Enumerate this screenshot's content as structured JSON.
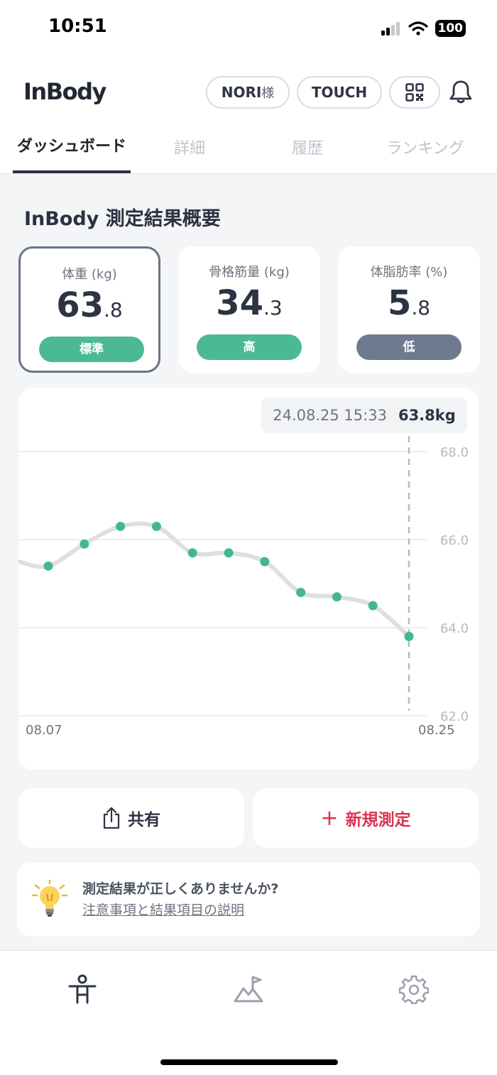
{
  "status": {
    "time": "10:51",
    "battery": "100"
  },
  "header": {
    "logo": "InBody",
    "user_name": "NORI",
    "user_suffix": "様",
    "touch_label": "TOUCH"
  },
  "tabs": [
    {
      "label": "ダッシュボード"
    },
    {
      "label": "詳細"
    },
    {
      "label": "履歴"
    },
    {
      "label": "ランキング"
    }
  ],
  "summary": {
    "title": "InBody 測定結果概要",
    "cards": [
      {
        "label": "体重 (kg)",
        "int": "63",
        "dec": ".8",
        "badge": "標準",
        "badge_color": "#4bba93"
      },
      {
        "label": "骨格筋量 (kg)",
        "int": "34",
        "dec": ".3",
        "badge": "高",
        "badge_color": "#4bba93"
      },
      {
        "label": "体脂肪率 (%)",
        "int": "5",
        "dec": ".8",
        "badge": "低",
        "badge_color": "#6e7a8e"
      }
    ]
  },
  "chart_data": {
    "type": "line",
    "tooltip": {
      "date": "24.08.25 15:33",
      "value": "63.8kg"
    },
    "x_labels": [
      "08.07",
      "08.25"
    ],
    "y_ticks": [
      "68.0",
      "66.0",
      "64.0",
      "62.0"
    ],
    "ylim": [
      62,
      68
    ],
    "values": [
      65.4,
      65.9,
      66.3,
      66.3,
      65.7,
      65.7,
      65.5,
      64.8,
      64.7,
      64.5,
      63.8
    ],
    "line_color": "#dcdfe3",
    "point_color": "#43b88f"
  },
  "actions": {
    "share_label": "共有",
    "new_plus": "+",
    "new_label": "新規測定"
  },
  "info": {
    "question": "測定結果が正しくありませんか?",
    "link": "注意事項と結果項目の説明"
  }
}
